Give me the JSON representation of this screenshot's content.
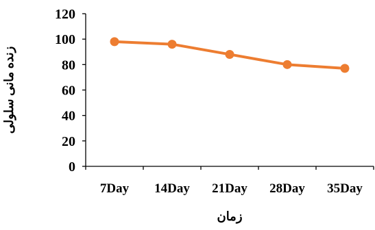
{
  "chart_data": {
    "type": "line",
    "title": "",
    "xlabel": "زمان",
    "ylabel": "زنده مانی سلولی",
    "categories": [
      "7Day",
      "14Day",
      "21Day",
      "28Day",
      "35Day"
    ],
    "series": [
      {
        "values": [
          98,
          96,
          88,
          80,
          77
        ],
        "color": "#ED7D31"
      }
    ],
    "ylim": [
      0,
      120
    ],
    "yticks": [
      0,
      20,
      40,
      60,
      80,
      100,
      120
    ],
    "ytick_labels": [
      "0",
      "20",
      "40",
      "60",
      "80",
      "100",
      "120"
    ],
    "grid": false,
    "legend": "none",
    "axis_color": "#000000"
  }
}
